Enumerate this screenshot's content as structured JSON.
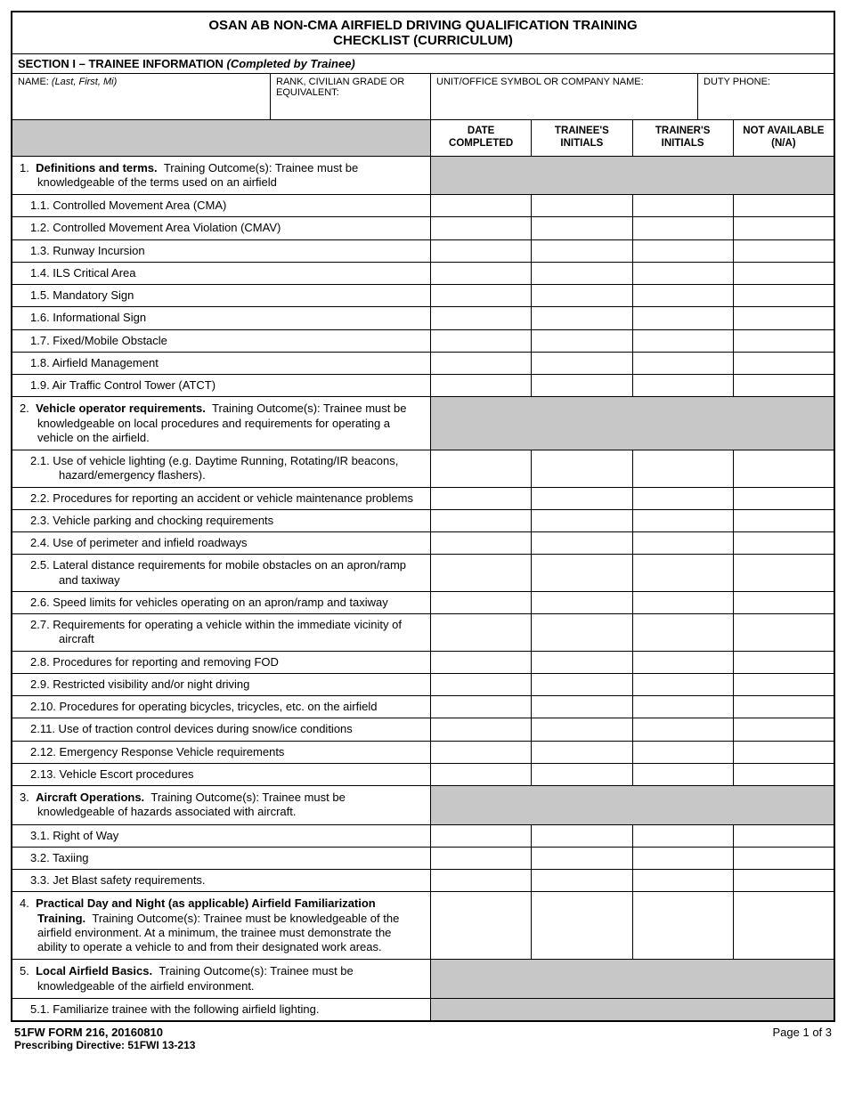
{
  "title_line1": "OSAN AB NON-CMA AIRFIELD DRIVING QUALIFICATION TRAINING",
  "title_line2": "CHECKLIST (CURRICULUM)",
  "section1_header_label": "SECTION I – TRAINEE INFORMATION",
  "section1_header_note": "(Completed by Trainee)",
  "info": {
    "name_label": "NAME:",
    "name_hint": "(Last, First, Mi)",
    "rank_label": "RANK, CIVILIAN GRADE OR EQUIVALENT:",
    "unit_label": "UNIT/OFFICE SYMBOL OR COMPANY NAME:",
    "phone_label": "DUTY PHONE:"
  },
  "col_headers": {
    "date": "DATE COMPLETED",
    "trainee": "TRAINEE'S INITIALS",
    "trainer": "TRAINER'S INITIALS",
    "na": "NOT AVAILABLE (N/A)"
  },
  "rows": [
    {
      "type": "section",
      "html": "1.&nbsp;&nbsp;<span class='bold'>Definitions and terms.</span>&nbsp;&nbsp;Training Outcome(s): Trainee must be knowledgeable of the terms used on an airfield",
      "merged": true
    },
    {
      "type": "sub",
      "text": "1.1.  Controlled Movement Area (CMA)"
    },
    {
      "type": "sub",
      "text": "1.2.  Controlled Movement Area Violation (CMAV)"
    },
    {
      "type": "sub",
      "text": "1.3.  Runway Incursion"
    },
    {
      "type": "sub",
      "text": "1.4.  ILS Critical Area"
    },
    {
      "type": "sub",
      "text": "1.5.  Mandatory Sign"
    },
    {
      "type": "sub",
      "text": "1.6.  Informational Sign"
    },
    {
      "type": "sub",
      "text": "1.7.  Fixed/Mobile Obstacle"
    },
    {
      "type": "sub",
      "text": "1.8.  Airfield Management"
    },
    {
      "type": "sub",
      "text": "1.9.  Air Traffic Control Tower (ATCT)"
    },
    {
      "type": "section",
      "html": "2.&nbsp;&nbsp;<span class='bold'>Vehicle operator requirements.</span>&nbsp;&nbsp;Training Outcome(s): Trainee must be knowledgeable on local procedures and requirements for operating a vehicle on the airfield.",
      "merged": true
    },
    {
      "type": "sub",
      "text": "2.1.  Use of vehicle lighting (e.g. Daytime Running, Rotating/IR beacons, hazard/emergency flashers)."
    },
    {
      "type": "sub",
      "text": "2.2.  Procedures for reporting an accident or vehicle maintenance problems"
    },
    {
      "type": "sub",
      "text": "2.3.  Vehicle parking and chocking requirements"
    },
    {
      "type": "sub",
      "text": "2.4.  Use of perimeter and infield roadways"
    },
    {
      "type": "sub",
      "text": "2.5.  Lateral distance requirements for mobile obstacles on an apron/ramp and taxiway"
    },
    {
      "type": "sub",
      "text": "2.6.  Speed limits for vehicles operating on an apron/ramp and taxiway"
    },
    {
      "type": "sub",
      "text": "2.7.  Requirements for operating a vehicle within the immediate vicinity of aircraft"
    },
    {
      "type": "sub",
      "text": "2.8.  Procedures for reporting and removing FOD"
    },
    {
      "type": "sub",
      "text": "2.9.  Restricted visibility and/or night driving"
    },
    {
      "type": "sub",
      "text": "2.10.  Procedures for operating bicycles, tricycles, etc. on the airfield"
    },
    {
      "type": "sub",
      "text": "2.11.  Use of traction control devices during snow/ice conditions"
    },
    {
      "type": "sub",
      "text": "2.12.  Emergency Response Vehicle requirements"
    },
    {
      "type": "sub",
      "text": "2.13.  Vehicle Escort procedures"
    },
    {
      "type": "section",
      "html": "3.&nbsp;&nbsp;<span class='bold'>Aircraft Operations.</span>&nbsp;&nbsp;Training Outcome(s): Trainee must be knowledgeable of hazards associated with aircraft.",
      "merged": true
    },
    {
      "type": "sub",
      "text": "3.1.  Right of Way"
    },
    {
      "type": "sub",
      "text": "3.2.  Taxiing"
    },
    {
      "type": "sub",
      "text": "3.3.  Jet Blast safety requirements."
    },
    {
      "type": "section",
      "html": "4.&nbsp;&nbsp;<span class='bold'>Practical Day and Night (as applicable) Airfield Familiarization Training.</span>&nbsp;&nbsp;Training Outcome(s): Trainee must be knowledgeable of the airfield environment. At a minimum, the trainee must demonstrate the ability to operate a vehicle to and from their designated work areas.",
      "merged": false
    },
    {
      "type": "section",
      "html": "5.&nbsp;&nbsp;<span class='bold'>Local Airfield Basics.</span>&nbsp;&nbsp;Training Outcome(s): Trainee must be knowledgeable of the airfield environment.",
      "merged": true
    },
    {
      "type": "sub",
      "text": "5.1.  Familiarize trainee with the following airfield lighting.",
      "sub_merged": true
    }
  ],
  "footer": {
    "form_id": "51FW FORM 216, 20160810",
    "page": "Page  1  of  3",
    "prescribe": "Prescribing Directive:  51FWI 13-213"
  }
}
